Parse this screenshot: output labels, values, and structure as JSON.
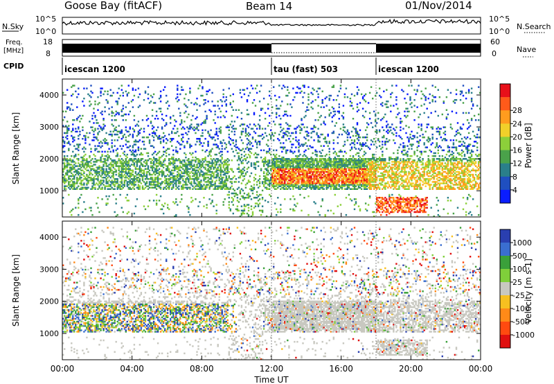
{
  "header": {
    "station": "Goose Bay (fitACF)",
    "beam": "Beam 14",
    "date": "01/Nov/2014"
  },
  "noise_panel": {
    "left_label": "N.Sky",
    "right_label": "N.Search",
    "left_ticks": [
      "10^5",
      "10^0"
    ],
    "right_ticks": [
      "10^5",
      "10^0"
    ]
  },
  "freq_panel": {
    "left_label_1": "Freq.",
    "left_label_2": "[MHz]",
    "right_label": "Nave",
    "left_ticks": [
      "18",
      "8"
    ],
    "right_ticks": [
      "60",
      "0"
    ]
  },
  "cpid": {
    "label": "CPID",
    "segments": [
      {
        "name": "icescan 1200",
        "start_hour": 0,
        "end_hour": 12
      },
      {
        "name": "tau (fast) 503",
        "start_hour": 12,
        "end_hour": 18
      },
      {
        "name": "icescan 1200",
        "start_hour": 18,
        "end_hour": 24
      }
    ]
  },
  "chart_data": [
    {
      "type": "heatmap",
      "title": "",
      "xlabel": "Time UT",
      "ylabel": "Slant Range [km]",
      "x_ticks": [
        "00:00",
        "04:00",
        "08:00",
        "12:00",
        "16:00",
        "20:00",
        "00:00"
      ],
      "xlim_hours": [
        0,
        24
      ],
      "y_ticks": [
        1000,
        2000,
        3000,
        4000
      ],
      "ylim": [
        180,
        4500
      ],
      "colorbar": {
        "label": "Power [dB]",
        "ticks": [
          4,
          8,
          12,
          16,
          20,
          24,
          28
        ],
        "range": [
          0,
          30
        ],
        "colors": [
          "#0a1dff",
          "#1f4fc0",
          "#2a7f8a",
          "#4aa24a",
          "#8ccf3a",
          "#f1d02a",
          "#ff9c1e",
          "#ff5a1a",
          "#e8101a"
        ]
      },
      "features": [
        {
          "name": "main echo band",
          "range_km": [
            1000,
            2000
          ],
          "hours": [
            0,
            24
          ]
        },
        {
          "name": "high power band",
          "range_km": [
            1200,
            1700
          ],
          "hours": [
            12,
            17
          ],
          "power_db": 24
        },
        {
          "name": "near-range echoes",
          "range_km": [
            300,
            800
          ],
          "hours": [
            18,
            21
          ],
          "power_db": 26
        },
        {
          "name": "far-range echoes",
          "range_km": [
            2500,
            4000
          ],
          "hours": [
            0,
            24
          ],
          "power_db": 8
        }
      ]
    },
    {
      "type": "heatmap",
      "title": "",
      "xlabel": "Time UT",
      "ylabel": "Slant Range [km]",
      "x_ticks": [
        "00:00",
        "04:00",
        "08:00",
        "12:00",
        "16:00",
        "20:00",
        "00:00"
      ],
      "xlim_hours": [
        0,
        24
      ],
      "y_ticks": [
        1000,
        2000,
        3000,
        4000
      ],
      "ylim": [
        180,
        4500
      ],
      "colorbar": {
        "label": "Velocity [m s-1]",
        "ticks": [
          1000,
          500,
          100,
          25,
          -25,
          -100,
          -500,
          -1000
        ],
        "colors": [
          "#2a3fb0",
          "#3a6ed0",
          "#3aa03a",
          "#7fcf3a",
          "#c8c8c0",
          "#f7c020",
          "#ff8a18",
          "#ff4a10",
          "#e01010"
        ]
      },
      "features": [
        {
          "name": "ground scatter",
          "range_km": [
            1100,
            2000
          ],
          "hours": [
            10,
            24
          ],
          "velocity": 0
        },
        {
          "name": "mixed velocities",
          "range_km": [
            1000,
            1900
          ],
          "hours": [
            0,
            10
          ],
          "velocity": -100
        }
      ]
    }
  ]
}
